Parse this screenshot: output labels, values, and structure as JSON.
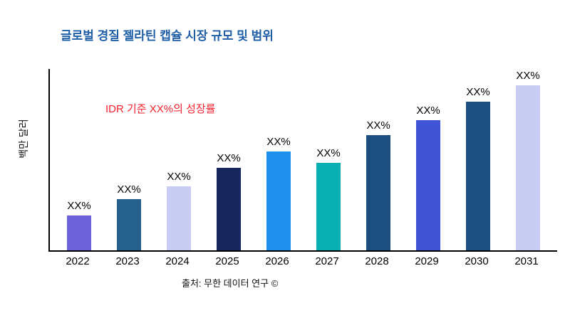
{
  "title": "글로벌 경질 젤라틴 캡슐 시장 규모 및 범위",
  "annotation": "IDR 기준 XX%의 성장률",
  "source": "출처: 무한 데이터 연구 ©",
  "colors": {
    "title_blue": "#1f5fa8",
    "annotation_red": "#f5222d",
    "axis_black": "#000000"
  },
  "chart_data": {
    "type": "bar",
    "title": "글로벌 경질 젤라틴 캡슐 시장 규모 및 범위",
    "xlabel": "",
    "ylabel": "백만 달러",
    "categories": [
      "2022",
      "2023",
      "2024",
      "2025",
      "2026",
      "2027",
      "2028",
      "2029",
      "2030",
      "2031"
    ],
    "values": [
      21,
      31,
      39,
      50,
      60,
      53,
      70,
      79,
      90,
      100
    ],
    "bar_labels": [
      "XX%",
      "XX%",
      "XX%",
      "XX%",
      "XX%",
      "XX%",
      "XX%",
      "XX%",
      "XX%",
      "XX%"
    ],
    "bar_colors": [
      "#6e62d9",
      "#26618e",
      "#c8ccf2",
      "#16265c",
      "#1e8fea",
      "#0aafb4",
      "#1c4e80",
      "#4154d6",
      "#1c4e80",
      "#c8ccf2"
    ],
    "ylim": [
      0,
      110
    ],
    "grid": false,
    "legend": "none",
    "annotation": "IDR 기준 XX%의 성장률"
  }
}
